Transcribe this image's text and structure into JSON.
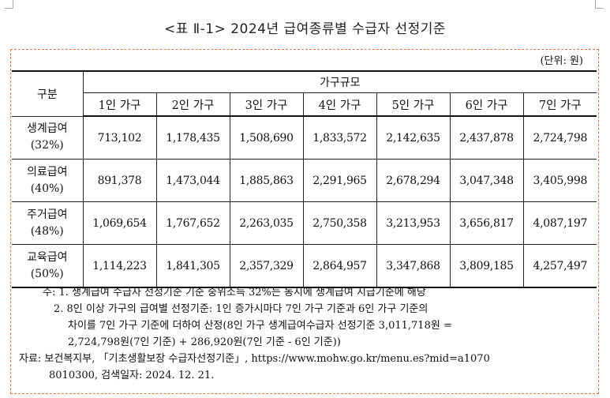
{
  "title": "<표 Ⅱ-1> 2024년 급여종류별 수급자 선정기준",
  "unit": "(단위: 원)",
  "table": {
    "row_header": "구분",
    "group_header": "가구규모",
    "columns": [
      "1인 가구",
      "2인 가구",
      "3인 가구",
      "4인 가구",
      "5인 가구",
      "6인 가구",
      "7인 가구"
    ],
    "rows": [
      {
        "label": "생계급여",
        "pct": "(32%)",
        "values": [
          "713,102",
          "1,178,435",
          "1,508,690",
          "1,833,572",
          "2,142,635",
          "2,437,878",
          "2,724,798"
        ]
      },
      {
        "label": "의료급여",
        "pct": "(40%)",
        "values": [
          "891,378",
          "1,473,044",
          "1,885,863",
          "2,291,965",
          "2,678,294",
          "3,047,348",
          "3,405,998"
        ]
      },
      {
        "label": "주거급여",
        "pct": "(48%)",
        "values": [
          "1,069,654",
          "1,767,652",
          "2,263,035",
          "2,750,358",
          "3,213,953",
          "3,656,817",
          "4,087,197"
        ]
      },
      {
        "label": "교육급여",
        "pct": "(50%)",
        "values": [
          "1,114,223",
          "1,841,305",
          "2,357,329",
          "2,864,957",
          "3,347,868",
          "3,809,185",
          "4,257,497"
        ]
      }
    ]
  },
  "notes": {
    "note1": "주: 1. 생계급여 수급자 선정기준 기준 중위소득 32%는 동시에 생계급여 지급기준에 해당",
    "note2_a": "2. 8인 이상 가구의 급여별 선정기준: 1인 증가시마다 7인 가구 기준과 6인 가구 기준의",
    "note2_b": "차이를 7인 가구 기준에 더하여 산정(8인 가구 생계급여수급자 선정기준 3,011,718원 =",
    "note2_c": "2,724,798원(7인 기준) + 286,920원(7인 기준 - 6인 기준))",
    "source_a": "자료: 보건복지부, 「기초생활보장 수급자선정기준」, https://www.mohw.go.kr/menu.es?mid=a1070",
    "source_b": "8010300, 검색일자: 2024. 12. 21."
  }
}
